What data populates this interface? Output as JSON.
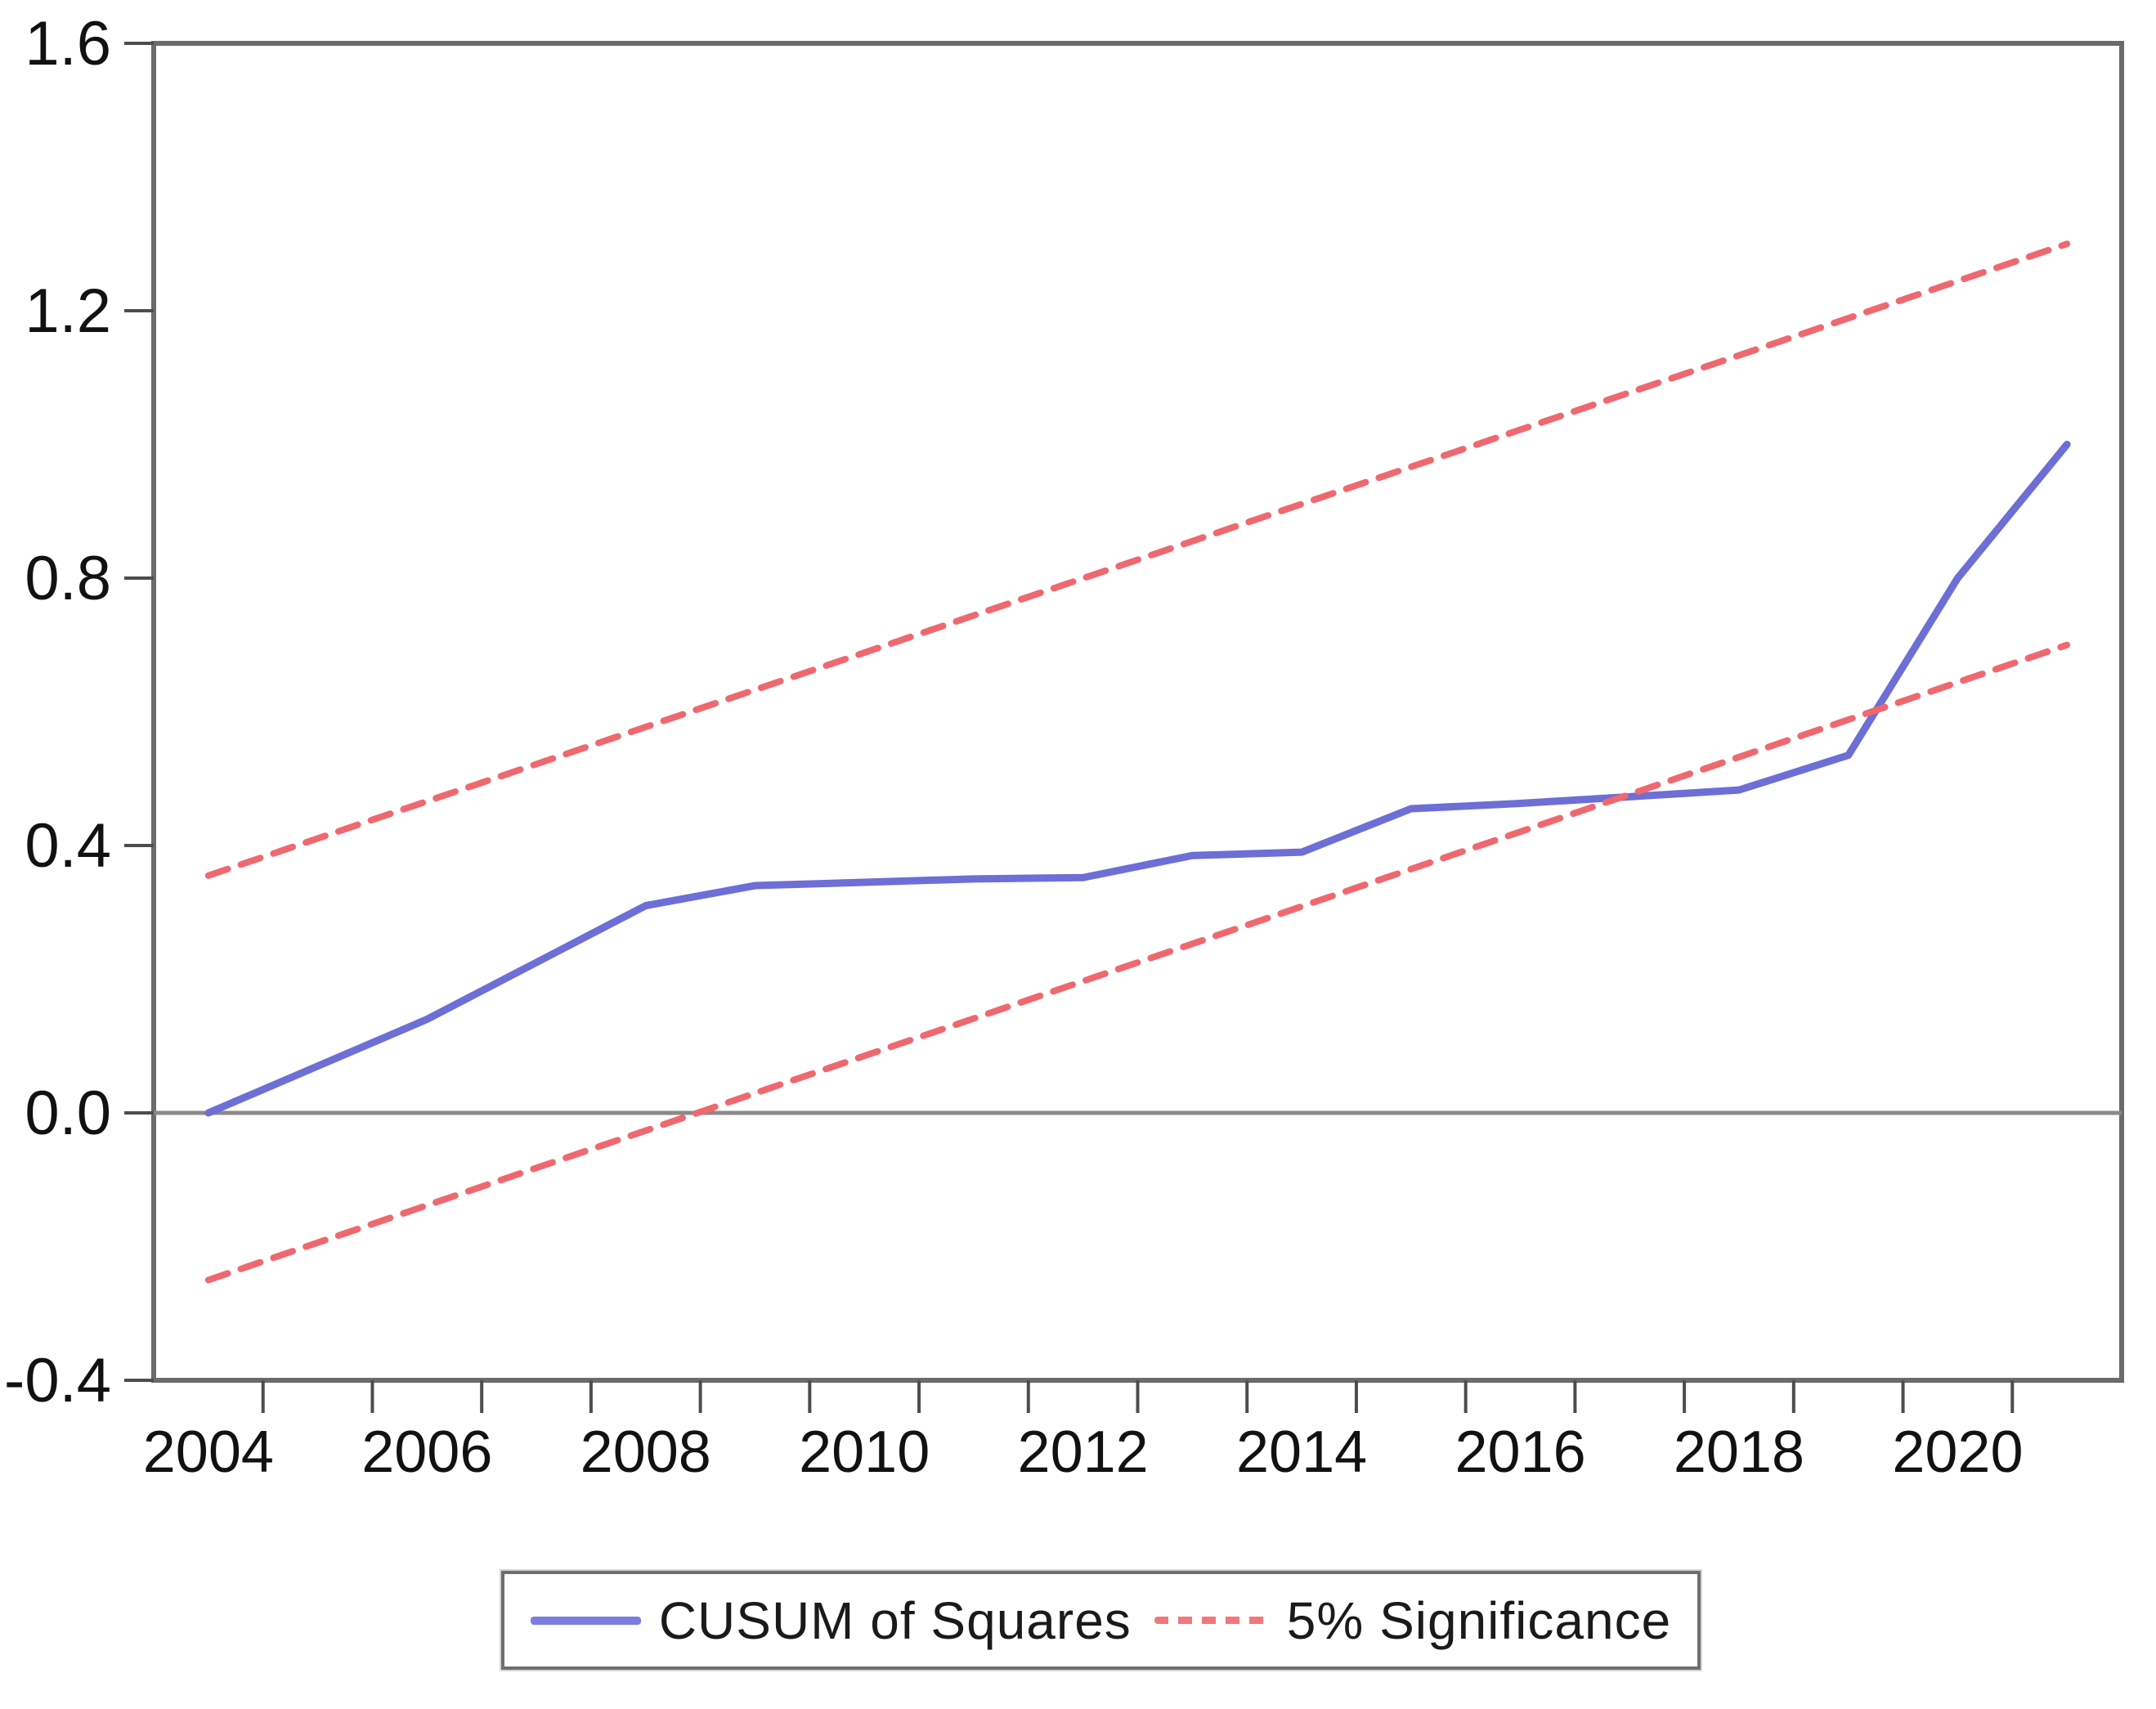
{
  "figure": {
    "background": "#ffffff",
    "frame_color": "#6b6b6b",
    "zero_line_color": "#8a8a8a",
    "tick_color": "#4d4d4d",
    "label_color": "#111111"
  },
  "legend": {
    "items": [
      {
        "label": "CUSUM of Squares",
        "style": "solid",
        "color": "#7c7de0"
      },
      {
        "label": "5% Significance",
        "style": "dashed",
        "color": "#f2777d"
      }
    ]
  },
  "chart_data": {
    "type": "line",
    "title": "",
    "xlabel": "",
    "ylabel": "",
    "xlim": [
      2003.5,
      2021.5
    ],
    "ylim": [
      -0.4,
      1.6
    ],
    "grid": false,
    "zero_line": true,
    "legend_position": "bottom-center",
    "y_ticks": [
      {
        "v": 1.6,
        "label": "1.6"
      },
      {
        "v": 1.2,
        "label": "1.2"
      },
      {
        "v": 0.8,
        "label": "0.8"
      },
      {
        "v": 0.4,
        "label": "0.4"
      },
      {
        "v": 0.0,
        "label": "0.0"
      },
      {
        "v": -0.4,
        "label": "-0.4"
      }
    ],
    "x_labeled_ticks": [
      {
        "v": 2004,
        "label": "2004"
      },
      {
        "v": 2006,
        "label": "2006"
      },
      {
        "v": 2008,
        "label": "2008"
      },
      {
        "v": 2010,
        "label": "2010"
      },
      {
        "v": 2012,
        "label": "2012"
      },
      {
        "v": 2014,
        "label": "2014"
      },
      {
        "v": 2016,
        "label": "2016"
      },
      {
        "v": 2018,
        "label": "2018"
      },
      {
        "v": 2020,
        "label": "2020"
      }
    ],
    "x_minor_ticks": [
      2004.5,
      2005.5,
      2006.5,
      2007.5,
      2008.5,
      2009.5,
      2010.5,
      2011.5,
      2012.5,
      2013.5,
      2014.5,
      2015.5,
      2016.5,
      2017.5,
      2018.5,
      2019.5,
      2020.5
    ],
    "series": [
      {
        "name": "CUSUM of Squares",
        "color": "#6d6ed6",
        "style": "solid",
        "width": 9,
        "x": [
          2004,
          2005,
          2006,
          2007,
          2008,
          2009,
          2010,
          2011,
          2012,
          2013,
          2014,
          2015,
          2016,
          2017,
          2018,
          2019,
          2020,
          2021
        ],
        "y": [
          0.0,
          0.07,
          0.14,
          0.225,
          0.31,
          0.34,
          0.345,
          0.35,
          0.352,
          0.385,
          0.39,
          0.455,
          0.463,
          0.473,
          0.483,
          0.535,
          0.8,
          1.0
        ]
      },
      {
        "name": "5% Significance (upper)",
        "color": "#f0686f",
        "style": "dashed",
        "width": 8,
        "x": [
          2004,
          2021
        ],
        "y": [
          0.355,
          1.3
        ]
      },
      {
        "name": "5% Significance (lower)",
        "color": "#f0686f",
        "style": "dashed",
        "width": 8,
        "x": [
          2004,
          2021
        ],
        "y": [
          -0.25,
          0.7
        ]
      }
    ]
  }
}
